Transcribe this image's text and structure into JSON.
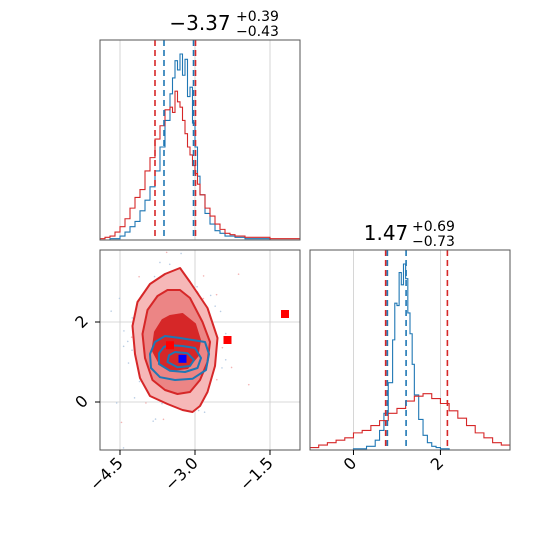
{
  "chart_data": [
    {
      "panel": "top-left",
      "type": "histogram",
      "title": {
        "base": "−3.37",
        "sup": "+0.39",
        "sub": "−0.43"
      },
      "xlim": [
        -4.9,
        -0.9
      ],
      "grid": true,
      "series": [
        {
          "color": "#1f77b4",
          "edges": [
            -4.9,
            -4.7,
            -4.5,
            -4.4,
            -4.3,
            -4.2,
            -4.1,
            -4.0,
            -3.9,
            -3.8,
            -3.7,
            -3.6,
            -3.5,
            -3.45,
            -3.4,
            -3.35,
            -3.3,
            -3.25,
            -3.2,
            -3.15,
            -3.1,
            -3.05,
            -3.0,
            -2.95,
            -2.9,
            -2.8,
            -2.7,
            -2.6,
            -2.5,
            -2.4,
            -2.2,
            -2.0,
            -1.8,
            -1.5,
            -1.2,
            -0.9
          ],
          "counts": [
            0,
            1,
            3,
            6,
            10,
            14,
            22,
            30,
            40,
            52,
            70,
            90,
            110,
            122,
            135,
            128,
            140,
            124,
            136,
            108,
            115,
            88,
            70,
            48,
            34,
            20,
            12,
            7,
            5,
            3,
            2,
            1,
            1,
            0,
            0
          ]
        },
        {
          "color": "#d62728",
          "edges": [
            -4.9,
            -4.8,
            -4.7,
            -4.6,
            -4.5,
            -4.4,
            -4.3,
            -4.2,
            -4.1,
            -4.0,
            -3.9,
            -3.8,
            -3.7,
            -3.6,
            -3.5,
            -3.45,
            -3.4,
            -3.35,
            -3.3,
            -3.25,
            -3.2,
            -3.15,
            -3.1,
            -3.05,
            -3.0,
            -2.95,
            -2.9,
            -2.8,
            -2.7,
            -2.6,
            -2.5,
            -2.4,
            -2.3,
            -2.2,
            -2.0,
            -1.8,
            -1.5,
            -1.2,
            -0.9
          ],
          "counts": [
            1,
            2,
            3,
            6,
            10,
            16,
            24,
            32,
            38,
            52,
            62,
            76,
            86,
            98,
            100,
            96,
            112,
            104,
            100,
            90,
            80,
            70,
            64,
            56,
            50,
            42,
            34,
            24,
            18,
            12,
            8,
            5,
            4,
            3,
            2,
            2,
            1,
            1
          ]
        }
      ],
      "vlines": [
        {
          "x": -3.8,
          "color": "#d62728"
        },
        {
          "x": -3.62,
          "color": "#1f77b4"
        },
        {
          "x": -3.03,
          "color": "#1f77b4"
        },
        {
          "x": -2.99,
          "color": "#d62728"
        }
      ]
    },
    {
      "panel": "bottom-left",
      "type": "contour",
      "xlim": [
        -4.9,
        -0.9
      ],
      "ylim": [
        -1.2,
        3.8
      ],
      "xticks": [
        "−4.5",
        "−3.0",
        "−1.5"
      ],
      "xtick_values": [
        -4.5,
        -3.0,
        -1.5
      ],
      "yticks": [
        "0",
        "2"
      ],
      "ytick_values": [
        0,
        2
      ],
      "grid": true,
      "red_contours": [
        {
          "level": "outer",
          "fill": "#f6b8b8",
          "points": [
            [
              -3.6,
              3.2
            ],
            [
              -3.3,
              3.35
            ],
            [
              -3.1,
              3.0
            ],
            [
              -2.75,
              2.35
            ],
            [
              -2.55,
              1.6
            ],
            [
              -2.6,
              0.9
            ],
            [
              -2.75,
              0.25
            ],
            [
              -2.9,
              -0.1
            ],
            [
              -3.05,
              -0.25
            ],
            [
              -3.25,
              -0.2
            ],
            [
              -3.55,
              -0.05
            ],
            [
              -3.9,
              0.15
            ],
            [
              -4.1,
              0.6
            ],
            [
              -4.2,
              1.2
            ],
            [
              -4.25,
              1.9
            ],
            [
              -4.15,
              2.5
            ],
            [
              -3.9,
              2.95
            ]
          ]
        },
        {
          "level": "middle",
          "fill": "#ec8585",
          "points": [
            [
              -3.55,
              2.8
            ],
            [
              -3.3,
              2.8
            ],
            [
              -3.1,
              2.6
            ],
            [
              -2.85,
              2.0
            ],
            [
              -2.7,
              1.5
            ],
            [
              -2.75,
              1.0
            ],
            [
              -2.9,
              0.55
            ],
            [
              -3.1,
              0.25
            ],
            [
              -3.35,
              0.2
            ],
            [
              -3.6,
              0.3
            ],
            [
              -3.85,
              0.55
            ],
            [
              -4.0,
              1.1
            ],
            [
              -4.05,
              1.7
            ],
            [
              -3.95,
              2.3
            ],
            [
              -3.75,
              2.65
            ]
          ]
        },
        {
          "level": "inner",
          "fill": "#d62728",
          "points": [
            [
              -3.5,
              2.15
            ],
            [
              -3.25,
              2.2
            ],
            [
              -3.0,
              1.95
            ],
            [
              -2.9,
              1.55
            ],
            [
              -2.95,
              1.15
            ],
            [
              -3.15,
              0.85
            ],
            [
              -3.45,
              0.8
            ],
            [
              -3.7,
              0.95
            ],
            [
              -3.85,
              1.3
            ],
            [
              -3.8,
              1.75
            ],
            [
              -3.65,
              2.05
            ]
          ]
        }
      ],
      "blue_contours": [
        {
          "level": "outer",
          "points": [
            [
              -3.6,
              1.65
            ],
            [
              -3.3,
              1.6
            ],
            [
              -3.05,
              1.55
            ],
            [
              -2.8,
              1.5
            ],
            [
              -2.72,
              1.2
            ],
            [
              -2.78,
              0.8
            ],
            [
              -3.05,
              0.58
            ],
            [
              -3.4,
              0.55
            ],
            [
              -3.7,
              0.62
            ],
            [
              -3.88,
              0.85
            ],
            [
              -3.9,
              1.2
            ],
            [
              -3.8,
              1.5
            ]
          ]
        },
        {
          "level": "middle",
          "points": [
            [
              -3.5,
              1.42
            ],
            [
              -3.25,
              1.4
            ],
            [
              -3.0,
              1.35
            ],
            [
              -2.88,
              1.1
            ],
            [
              -2.95,
              0.85
            ],
            [
              -3.2,
              0.75
            ],
            [
              -3.5,
              0.78
            ],
            [
              -3.72,
              0.95
            ],
            [
              -3.72,
              1.22
            ],
            [
              -3.62,
              1.38
            ]
          ]
        },
        {
          "level": "inner",
          "points": [
            [
              -3.4,
              1.25
            ],
            [
              -3.15,
              1.22
            ],
            [
              -3.02,
              1.05
            ],
            [
              -3.1,
              0.9
            ],
            [
              -3.35,
              0.87
            ],
            [
              -3.55,
              1.0
            ],
            [
              -3.52,
              1.17
            ]
          ]
        }
      ],
      "markers": [
        {
          "x": -3.25,
          "y": 1.08,
          "color": "#0000ff"
        },
        {
          "x": -3.5,
          "y": 1.42,
          "color": "#ff0000"
        },
        {
          "x": -2.35,
          "y": 1.55,
          "color": "#ff0000"
        },
        {
          "x": -1.2,
          "y": 2.2,
          "color": "#ff0000"
        }
      ]
    },
    {
      "panel": "bottom-right",
      "type": "histogram",
      "title": {
        "base": "1.47",
        "sup": "+0.69",
        "sub": "−0.73"
      },
      "xlim": [
        -1.0,
        3.6
      ],
      "xticks": [
        "0",
        "2"
      ],
      "xtick_values": [
        0,
        2
      ],
      "grid": true,
      "series": [
        {
          "color": "#1f77b4",
          "edges": [
            -1.0,
            -0.5,
            0.0,
            0.3,
            0.5,
            0.6,
            0.7,
            0.8,
            0.9,
            0.95,
            1.0,
            1.05,
            1.1,
            1.15,
            1.2,
            1.25,
            1.3,
            1.35,
            1.4,
            1.5,
            1.6,
            1.7,
            1.8,
            1.9,
            2.0,
            2.2,
            2.5,
            3.0,
            3.6
          ],
          "counts": [
            0,
            0,
            1,
            3,
            8,
            16,
            30,
            55,
            90,
            120,
            118,
            145,
            135,
            152,
            140,
            112,
            95,
            70,
            45,
            25,
            12,
            6,
            3,
            2,
            1,
            0,
            0,
            0
          ]
        },
        {
          "color": "#d62728",
          "edges": [
            -1.0,
            -0.8,
            -0.6,
            -0.4,
            -0.2,
            0.0,
            0.2,
            0.4,
            0.6,
            0.8,
            1.0,
            1.2,
            1.4,
            1.6,
            1.8,
            2.0,
            2.2,
            2.4,
            2.6,
            2.8,
            3.0,
            3.2,
            3.4,
            3.6
          ],
          "counts": [
            2,
            4,
            6,
            8,
            10,
            14,
            16,
            20,
            24,
            30,
            34,
            40,
            44,
            46,
            42,
            38,
            32,
            26,
            20,
            14,
            10,
            6,
            4
          ]
        }
      ],
      "vlines": [
        {
          "x": 0.74,
          "color": "#d62728"
        },
        {
          "x": 0.78,
          "color": "#1f77b4"
        },
        {
          "x": 1.21,
          "color": "#1f77b4"
        },
        {
          "x": 2.16,
          "color": "#d62728"
        }
      ]
    }
  ]
}
